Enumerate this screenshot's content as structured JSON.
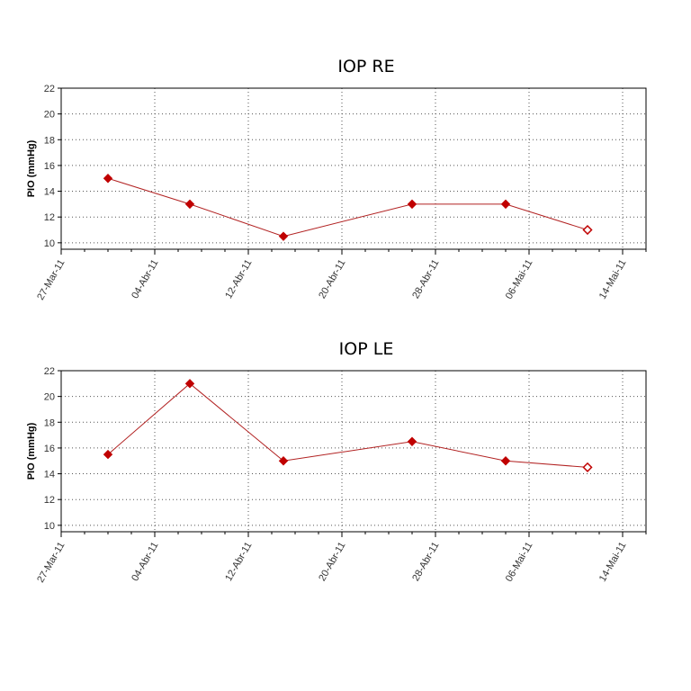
{
  "colors": {
    "series": "#c00000",
    "line": "#b22222",
    "grid": "#555555",
    "axis": "#000000"
  },
  "chart_data": [
    {
      "type": "line",
      "title": "IOP RE",
      "xlabel": "",
      "ylabel": "PIO (mmHg)",
      "x_tick_labels": [
        "27-Mar-11",
        "04-Abr-11",
        "12-Abr-11",
        "20-Abr-11",
        "28-Abr-11",
        "06-Mai-11",
        "14-Mai-11"
      ],
      "x_ticks": [
        "2011-03-27",
        "2011-04-04",
        "2011-04-12",
        "2011-04-20",
        "2011-04-28",
        "2011-05-06",
        "2011-05-14"
      ],
      "xlim": [
        "2011-03-27",
        "2011-05-16"
      ],
      "ylim": [
        9.5,
        22
      ],
      "y_ticks": [
        10,
        12,
        14,
        16,
        18,
        20,
        22
      ],
      "grid": true,
      "x": [
        "2011-03-31",
        "2011-04-07",
        "2011-04-15",
        "2011-04-26",
        "2011-05-04",
        "2011-05-11"
      ],
      "values": [
        15,
        13,
        10.5,
        13,
        13,
        11
      ],
      "marker_fill": [
        "filled",
        "filled",
        "filled",
        "filled",
        "filled",
        "open"
      ]
    },
    {
      "type": "line",
      "title": "IOP LE",
      "xlabel": "",
      "ylabel": "PIO (mmHg)",
      "x_tick_labels": [
        "27-Mar-11",
        "04-Abr-11",
        "12-Abr-11",
        "20-Abr-11",
        "28-Abr-11",
        "06-Mai-11",
        "14-Mai-11"
      ],
      "x_ticks": [
        "2011-03-27",
        "2011-04-04",
        "2011-04-12",
        "2011-04-20",
        "2011-04-28",
        "2011-05-06",
        "2011-05-14"
      ],
      "xlim": [
        "2011-03-27",
        "2011-05-16"
      ],
      "ylim": [
        9.5,
        22
      ],
      "y_ticks": [
        10,
        12,
        14,
        16,
        18,
        20,
        22
      ],
      "grid": true,
      "x": [
        "2011-03-31",
        "2011-04-07",
        "2011-04-15",
        "2011-04-26",
        "2011-05-04",
        "2011-05-11"
      ],
      "values": [
        15.5,
        21,
        15,
        16.5,
        15,
        14.5
      ],
      "marker_fill": [
        "filled",
        "filled",
        "filled",
        "filled",
        "filled",
        "open"
      ]
    }
  ]
}
